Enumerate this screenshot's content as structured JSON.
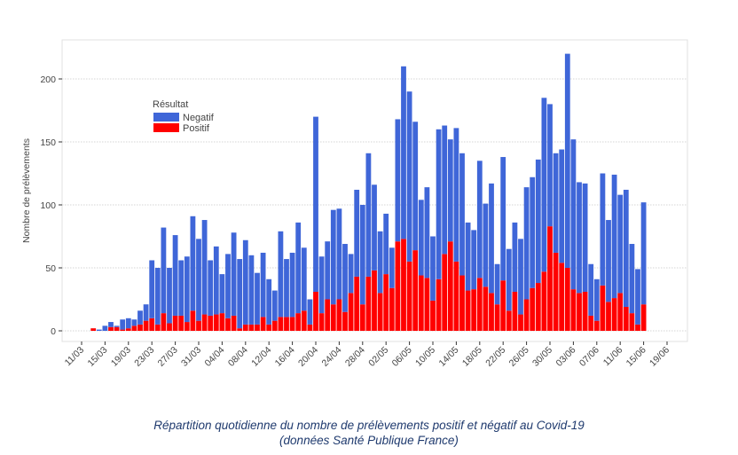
{
  "chart_data": {
    "type": "bar",
    "stacked": true,
    "ylabel": "Nombre de prélèvements",
    "xlabel": "",
    "ylim": [
      0,
      230
    ],
    "yticks": [
      0,
      50,
      100,
      150,
      200
    ],
    "grid": true,
    "legend": {
      "title": "Résultat",
      "placement": "top-left"
    },
    "xtick_labels": [
      "11/03",
      "15/03",
      "19/03",
      "23/03",
      "27/03",
      "31/03",
      "04/04",
      "08/04",
      "12/04",
      "16/04",
      "20/04",
      "24/04",
      "28/04",
      "02/05",
      "06/05",
      "10/05",
      "14/05",
      "18/05",
      "22/05",
      "26/05",
      "30/05",
      "03/06",
      "07/06",
      "11/06",
      "15/06",
      "19/06"
    ],
    "categories": [
      "13/03",
      "14/03",
      "15/03",
      "16/03",
      "17/03",
      "18/03",
      "19/03",
      "20/03",
      "21/03",
      "22/03",
      "23/03",
      "24/03",
      "25/03",
      "26/03",
      "27/03",
      "28/03",
      "29/03",
      "30/03",
      "31/03",
      "01/04",
      "02/04",
      "03/04",
      "04/04",
      "05/04",
      "06/04",
      "07/04",
      "08/04",
      "09/04",
      "10/04",
      "11/04",
      "12/04",
      "13/04",
      "14/04",
      "15/04",
      "16/04",
      "17/04",
      "18/04",
      "19/04",
      "20/04",
      "21/04",
      "22/04",
      "23/04",
      "24/04",
      "25/04",
      "26/04",
      "27/04",
      "28/04",
      "29/04",
      "30/04",
      "01/05",
      "02/05",
      "03/05",
      "04/05",
      "05/05",
      "06/05",
      "07/05",
      "08/05",
      "09/05",
      "10/05",
      "11/05",
      "12/05",
      "13/05",
      "14/05",
      "15/05",
      "16/05",
      "17/05",
      "18/05",
      "19/05",
      "20/05",
      "21/05",
      "22/05",
      "23/05",
      "24/05",
      "25/05",
      "26/05",
      "27/05",
      "28/05",
      "29/05",
      "30/05",
      "31/05",
      "01/06",
      "02/06",
      "03/06",
      "04/06",
      "05/06",
      "06/06",
      "07/06",
      "08/06",
      "09/06",
      "10/06",
      "11/06",
      "12/06",
      "13/06",
      "14/06",
      "15/06"
    ],
    "series": [
      {
        "name": "Negatif",
        "color": "#3f66d8",
        "values": [
          0,
          1,
          4,
          4,
          1,
          8,
          8,
          5,
          11,
          13,
          46,
          45,
          68,
          44,
          64,
          44,
          52,
          75,
          65,
          75,
          44,
          54,
          31,
          51,
          66,
          55,
          67,
          55,
          41,
          51,
          36,
          24,
          68,
          46,
          51,
          72,
          50,
          20,
          139,
          45,
          46,
          75,
          72,
          54,
          31,
          69,
          79,
          98,
          68,
          49,
          48,
          32,
          97,
          137,
          135,
          102,
          60,
          72,
          51,
          119,
          102,
          81,
          106,
          97,
          54,
          47,
          93,
          66,
          87,
          32,
          98,
          49,
          55,
          60,
          89,
          88,
          98,
          138,
          97,
          79,
          90,
          170,
          119,
          88,
          86,
          41,
          33,
          89,
          65,
          98,
          78,
          93,
          55,
          44,
          81
        ]
      },
      {
        "name": "Positif",
        "color": "#ff0000",
        "values": [
          2,
          0,
          0,
          3,
          3,
          1,
          2,
          4,
          5,
          8,
          10,
          5,
          14,
          6,
          12,
          12,
          7,
          16,
          8,
          13,
          12,
          13,
          14,
          10,
          12,
          2,
          5,
          5,
          5,
          11,
          5,
          8,
          11,
          11,
          11,
          14,
          16,
          5,
          31,
          14,
          25,
          21,
          25,
          15,
          30,
          43,
          21,
          43,
          48,
          30,
          45,
          34,
          71,
          73,
          55,
          64,
          44,
          42,
          24,
          41,
          61,
          71,
          55,
          44,
          32,
          33,
          42,
          35,
          30,
          21,
          40,
          16,
          31,
          13,
          25,
          34,
          38,
          47,
          83,
          62,
          54,
          50,
          33,
          30,
          31,
          12,
          8,
          36,
          23,
          26,
          30,
          19,
          14,
          5,
          21
        ]
      }
    ]
  },
  "caption": {
    "line1": "Répartition quotidienne du nombre de prélèvements positif et négatif au Covid-19",
    "line2": "(données Santé Publique France)"
  }
}
